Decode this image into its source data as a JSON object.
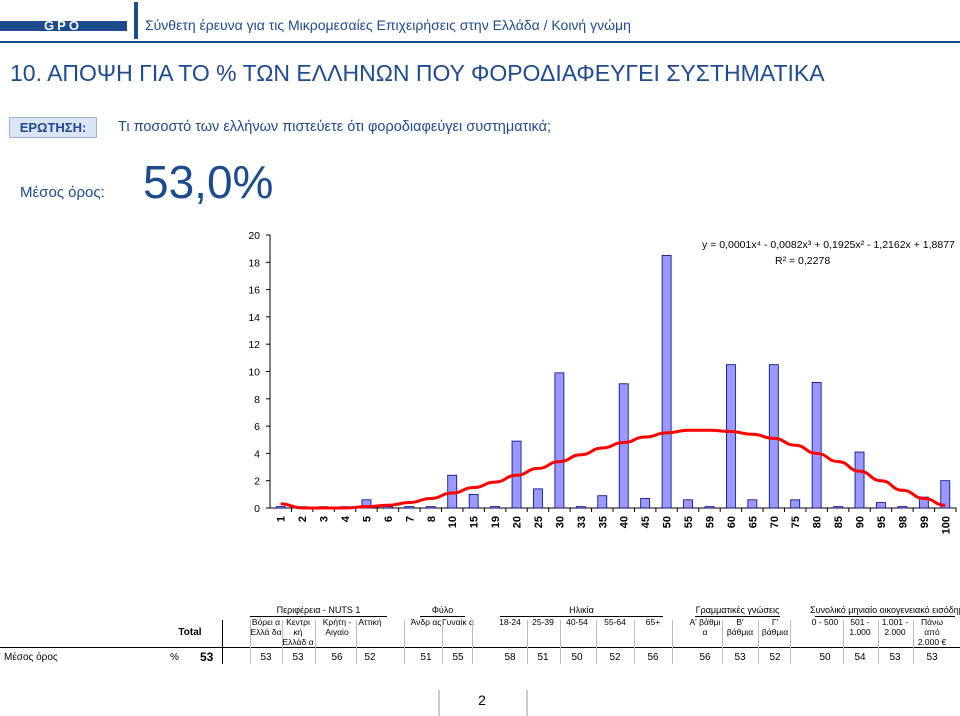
{
  "header": {
    "logo_text": "GPO",
    "subtitle": "Σύνθετη έρευνα για τις Μικρομεσαίες Επιχειρήσεις στην Ελλάδα  /  Κοινή γνώμη"
  },
  "title": "10.  ΑΠΟΨΗ ΓΙΑ ΤΟ % ΤΩΝ ΕΛΛΗΝΩΝ ΠΟΥ ΦΟΡΟΔΙΑΦΕΥΓΕΙ ΣΥΣΤΗΜΑΤΙΚΑ",
  "question": {
    "label": "ΕΡΩΤΗΣΗ:",
    "text": "Τι ποσοστό των ελλήνων πιστεύετε ότι φοροδιαφεύγει συστηματικά;"
  },
  "mean": {
    "label": "Μέσος όρος:",
    "value": "53,0%"
  },
  "colors": {
    "accent": "#1e4a8e",
    "bar": "#9999ff",
    "trendline": "#ff0000"
  },
  "chart_data": {
    "type": "bar",
    "categories": [
      "1",
      "2",
      "3",
      "4",
      "5",
      "6",
      "7",
      "8",
      "10",
      "15",
      "19",
      "20",
      "25",
      "30",
      "33",
      "35",
      "40",
      "45",
      "50",
      "55",
      "59",
      "60",
      "65",
      "70",
      "75",
      "80",
      "85",
      "90",
      "95",
      "98",
      "99",
      "100"
    ],
    "values": [
      0.1,
      0.1,
      0.1,
      0.1,
      0.6,
      0.1,
      0.1,
      0.1,
      2.4,
      1.0,
      0.1,
      4.9,
      1.4,
      9.9,
      0.1,
      0.9,
      9.1,
      0.7,
      18.5,
      0.6,
      0.1,
      10.5,
      0.6,
      10.5,
      0.6,
      9.2,
      0.1,
      4.1,
      0.4,
      0.1,
      0.8,
      2.0
    ],
    "ylim": [
      0,
      20
    ],
    "yticks": [
      0,
      2,
      4,
      6,
      8,
      10,
      12,
      14,
      16,
      18,
      20
    ],
    "grid": false,
    "trendline": {
      "type": "polynomial",
      "equation": "y = 0,0001x⁴ - 0,0082x³ + 0,1925x² - 1,2162x + 1,8877",
      "r2": "R² = 0,2278",
      "values": [
        0.3,
        0.0,
        0.0,
        0.0,
        0.1,
        0.2,
        0.4,
        0.7,
        1.1,
        1.5,
        1.9,
        2.4,
        2.9,
        3.4,
        3.9,
        4.4,
        4.8,
        5.2,
        5.5,
        5.7,
        5.7,
        5.6,
        5.4,
        5.1,
        4.6,
        4.0,
        3.4,
        2.7,
        2.0,
        1.3,
        0.7,
        0.2
      ]
    }
  },
  "table": {
    "total_label": "Total",
    "row_label": "Μέσος όρος",
    "pct": "%",
    "total_value": "53",
    "groups": [
      {
        "name": "Περιφέρεια - NUTS 1",
        "cols": [
          {
            "header": "Βόρει α Ελλά δα",
            "value": "53"
          },
          {
            "header": "Κεντρι κή Ελλάδ α",
            "value": "53"
          },
          {
            "header": "Κρήτη - Αιγαίο",
            "value": "56"
          },
          {
            "header": "Αττική",
            "value": "52"
          }
        ]
      },
      {
        "name": "Φύλο",
        "cols": [
          {
            "header": "Άνδρ ας",
            "value": "51"
          },
          {
            "header": "Γυναίκ α",
            "value": "55"
          }
        ]
      },
      {
        "name": "Ηλικία",
        "cols": [
          {
            "header": "18-24",
            "value": "58"
          },
          {
            "header": "25-39",
            "value": "51"
          },
          {
            "header": "40-54",
            "value": "50"
          },
          {
            "header": "55-64",
            "value": "52"
          },
          {
            "header": "65+",
            "value": "56"
          }
        ]
      },
      {
        "name": "Γραμματικές γνώσεις",
        "cols": [
          {
            "header": "Α' βάθμι α",
            "value": "56"
          },
          {
            "header": "Β' βάθμια",
            "value": "53"
          },
          {
            "header": "Γ' βάθμια",
            "value": "52"
          }
        ]
      },
      {
        "name": "Συνολικό μηνιαίο οικογενειακό εισόδημα",
        "cols": [
          {
            "header": "0 - 500",
            "value": "50"
          },
          {
            "header": "501 - 1.000",
            "value": "54"
          },
          {
            "header": "1.001 - 2.000",
            "value": "53"
          },
          {
            "header": "Πάνω από 2.000 €",
            "value": "53"
          }
        ]
      }
    ]
  },
  "footer": {
    "page_number": "2"
  }
}
